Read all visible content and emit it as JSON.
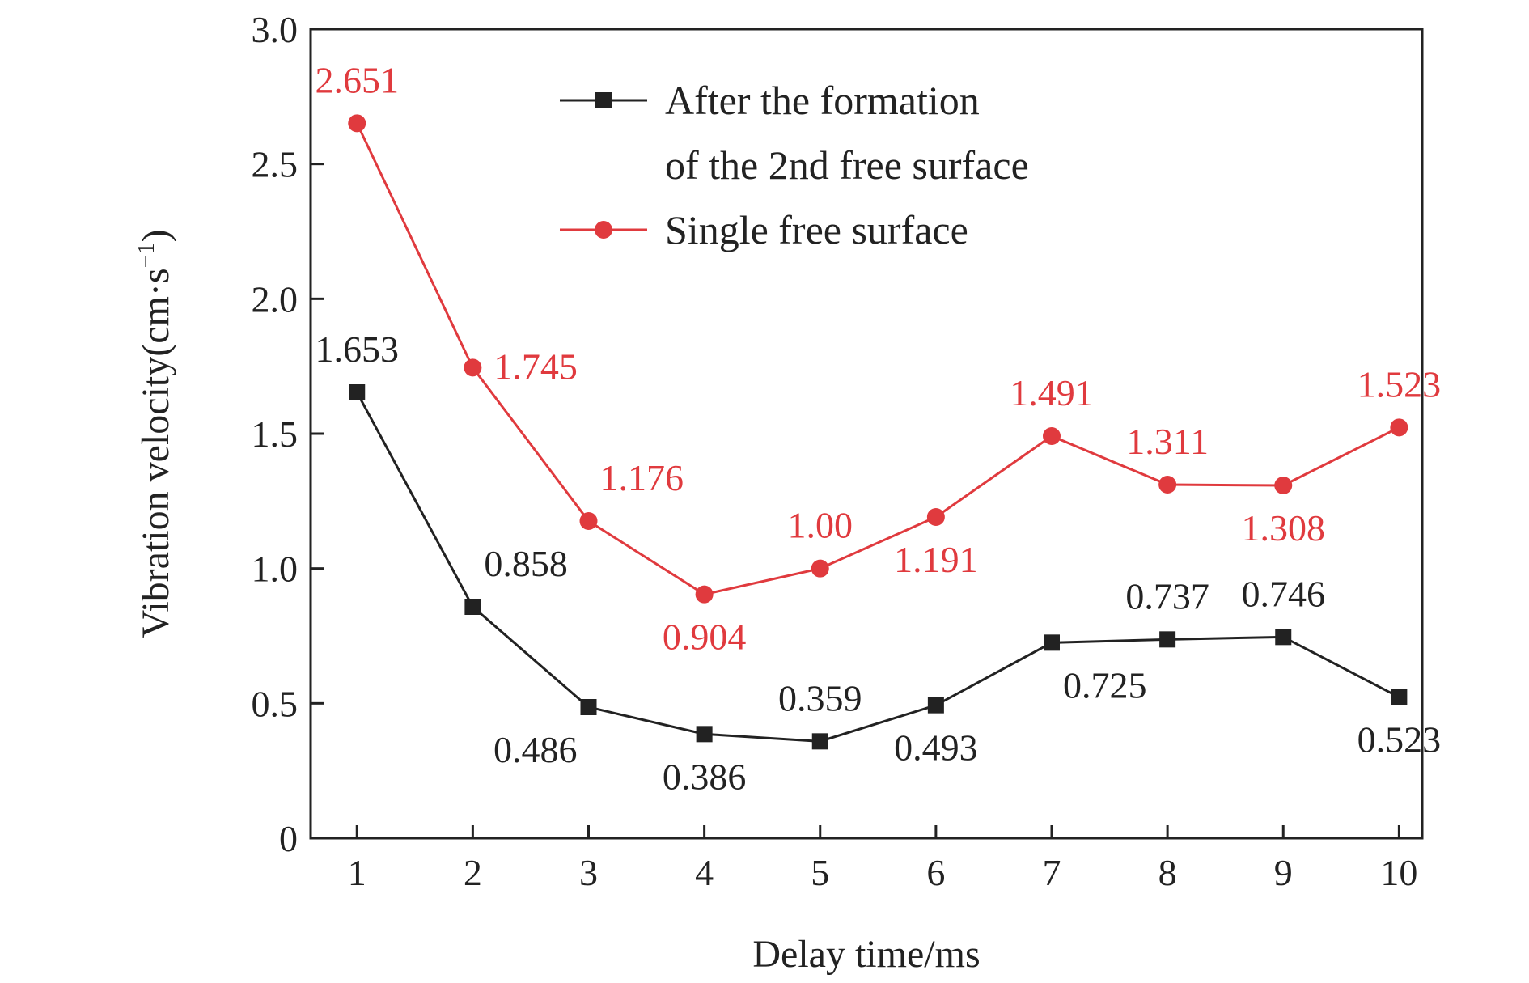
{
  "chart_data": {
    "type": "line",
    "xlabel": "Delay time/ms",
    "ylabel": "Vibration velocity(cm·s",
    "ylabel_sup": "−1",
    "ylabel_close": ")",
    "x": [
      1,
      2,
      3,
      4,
      5,
      6,
      7,
      8,
      9,
      10
    ],
    "x_tick_labels": [
      "1",
      "2",
      "3",
      "4",
      "5",
      "6",
      "7",
      "8",
      "9",
      "10"
    ],
    "xlim": [
      0.6,
      10.2
    ],
    "ylim": [
      0,
      3.0
    ],
    "y_ticks": [
      0,
      0.5,
      1.0,
      1.5,
      2.0,
      2.5,
      3.0
    ],
    "y_tick_labels": [
      "0",
      "0.5",
      "1.0",
      "1.5",
      "2.0",
      "2.5",
      "3.0"
    ],
    "grid": false,
    "legend_position": "top-right",
    "series": [
      {
        "name": "After the formation of the 2nd free surface",
        "legend_lines": [
          "After the formation",
          "of the 2nd free surface"
        ],
        "color": "#222222",
        "marker": "square",
        "values": [
          1.653,
          0.858,
          0.486,
          0.386,
          0.359,
          0.493,
          0.725,
          0.737,
          0.746,
          0.523
        ],
        "labels": [
          "1.653",
          "0.858",
          "0.486",
          "0.386",
          "0.359",
          "0.493",
          "0.725",
          "0.737",
          "0.746",
          "0.523"
        ],
        "label_placement": [
          "above",
          "above-right",
          "below-left",
          "below",
          "above",
          "below",
          "below-right",
          "above",
          "above",
          "below"
        ]
      },
      {
        "name": "Single free surface",
        "legend_lines": [
          "Single free surface"
        ],
        "color": "#e03a3e",
        "marker": "circle",
        "values": [
          2.651,
          1.745,
          1.176,
          0.904,
          1.0,
          1.191,
          1.491,
          1.311,
          1.308,
          1.523
        ],
        "labels": [
          "2.651",
          "1.745",
          "1.176",
          "0.904",
          "1.00",
          "1.191",
          "1.491",
          "1.311",
          "1.308",
          "1.523"
        ],
        "label_placement": [
          "above",
          "right",
          "above-right",
          "below",
          "above",
          "below",
          "above",
          "above",
          "below",
          "above"
        ]
      }
    ]
  }
}
